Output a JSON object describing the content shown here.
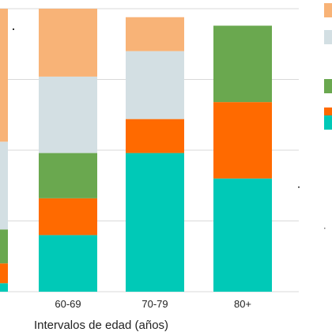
{
  "chart_data": {
    "type": "bar",
    "stacked": true,
    "normalized": true,
    "categories": [
      "",
      "60-69",
      "70-79",
      "80+"
    ],
    "xlabel": "Intervalos de edad (años)",
    "ylabel": "",
    "title": "",
    "ylim": [
      0,
      100
    ],
    "grid": true,
    "legend_position": "right",
    "series": [
      {
        "color": "#00c9b7",
        "values": [
          3,
          20,
          49,
          40
        ]
      },
      {
        "color": "#ff6a00",
        "values": [
          7,
          13,
          12,
          27
        ]
      },
      {
        "color": "#6aa84f",
        "values": [
          12,
          16,
          0,
          27
        ]
      },
      {
        "color": "#d3dfe3",
        "values": [
          31,
          27,
          24,
          0
        ]
      },
      {
        "color": "#f8b377",
        "values": [
          47,
          24,
          12,
          0
        ]
      }
    ]
  }
}
